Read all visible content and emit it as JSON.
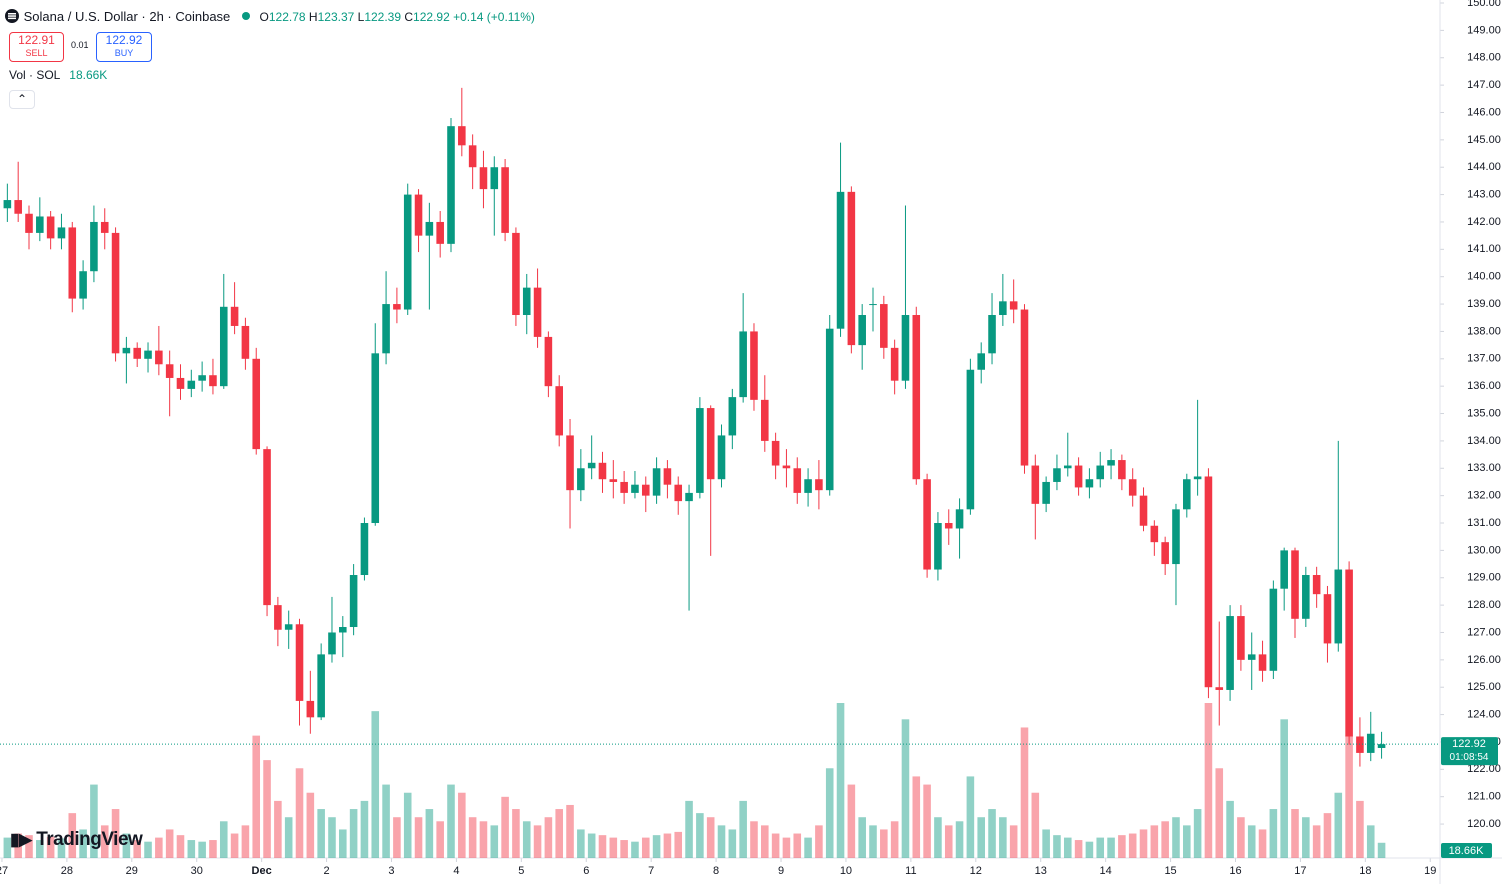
{
  "header": {
    "symbol": "Solana / U.S. Dollar · 2h · Coinbase",
    "open_prefix": "O",
    "high_prefix": "H",
    "low_prefix": "L",
    "close_prefix": "C",
    "change": "+0.14 (+0.11%)",
    "sell_price": "122.91",
    "sell": "SELL",
    "spread": "0.01",
    "buy_price": "122.92",
    "buy": "BUY",
    "volume_title": "Vol · SOL",
    "logo": "TradingView"
  },
  "chart_data": {
    "type": "candlestick",
    "up_color": "#089981",
    "down_color": "#f23645",
    "countdown": "01:08:54",
    "volume_value_label": "18.66K",
    "ylim": [
      118.76,
      150.11
    ],
    "xlim": [
      -0.18,
      132.9
    ],
    "yticks": [
      {
        "value": 120,
        "label": "120.00"
      },
      {
        "value": 121,
        "label": "121.00"
      },
      {
        "value": 122,
        "label": "122.00"
      },
      {
        "value": 123,
        "label": "123.00"
      },
      {
        "value": 124,
        "label": "124.00"
      },
      {
        "value": 125,
        "label": "125.00"
      },
      {
        "value": 126,
        "label": "126.00"
      },
      {
        "value": 127,
        "label": "127.00"
      },
      {
        "value": 128,
        "label": "128.00"
      },
      {
        "value": 129,
        "label": "129.00"
      },
      {
        "value": 130,
        "label": "130.00"
      },
      {
        "value": 131,
        "label": "131.00"
      },
      {
        "value": 132,
        "label": "132.00"
      },
      {
        "value": 133,
        "label": "133.00"
      },
      {
        "value": 134,
        "label": "134.00"
      },
      {
        "value": 135,
        "label": "135.00"
      },
      {
        "value": 136,
        "label": "136.00"
      },
      {
        "value": 137,
        "label": "137.00"
      },
      {
        "value": 138,
        "label": "138.00"
      },
      {
        "value": 139,
        "label": "139.00"
      },
      {
        "value": 140,
        "label": "140.00"
      },
      {
        "value": 141,
        "label": "141.00"
      },
      {
        "value": 142,
        "label": "142.00"
      },
      {
        "value": 143,
        "label": "143.00"
      },
      {
        "value": 144,
        "label": "144.00"
      },
      {
        "value": 145,
        "label": "145.00"
      },
      {
        "value": 146,
        "label": "146.00"
      },
      {
        "value": 147,
        "label": "147.00"
      },
      {
        "value": 148,
        "label": "148.00"
      },
      {
        "value": 149,
        "label": "149.00"
      },
      {
        "value": 150,
        "label": "150.00"
      }
    ],
    "xticks": [
      {
        "value": 0,
        "label": "27"
      },
      {
        "value": 6,
        "label": "28"
      },
      {
        "value": 12,
        "label": "29"
      },
      {
        "value": 18,
        "label": "30"
      },
      {
        "value": 24,
        "label": "Dec"
      },
      {
        "value": 30,
        "label": "2"
      },
      {
        "value": 36,
        "label": "3"
      },
      {
        "value": 42,
        "label": "4"
      },
      {
        "value": 48,
        "label": "5"
      },
      {
        "value": 54,
        "label": "6"
      },
      {
        "value": 60,
        "label": "7"
      },
      {
        "value": 66,
        "label": "8"
      },
      {
        "value": 72,
        "label": "9"
      },
      {
        "value": 78,
        "label": "10"
      },
      {
        "value": 84,
        "label": "11"
      },
      {
        "value": 90,
        "label": "12"
      },
      {
        "value": 96,
        "label": "13"
      },
      {
        "value": 102,
        "label": "14"
      },
      {
        "value": 108,
        "label": "15"
      },
      {
        "value": 114,
        "label": "16"
      },
      {
        "value": 120,
        "label": "17"
      },
      {
        "value": 126,
        "label": "18"
      },
      {
        "value": 132,
        "label": "19"
      }
    ],
    "candles": [
      [
        142.5,
        143.4,
        142.0,
        142.8,
        25000
      ],
      [
        142.8,
        144.2,
        142.0,
        142.3,
        30000
      ],
      [
        142.3,
        142.6,
        141.0,
        141.6,
        28000
      ],
      [
        141.6,
        142.9,
        141.3,
        142.2,
        22000
      ],
      [
        142.2,
        142.4,
        141.0,
        141.4,
        26000
      ],
      [
        141.4,
        142.3,
        141.0,
        141.8,
        24000
      ],
      [
        141.8,
        142.0,
        138.7,
        139.2,
        55000
      ],
      [
        139.2,
        140.6,
        138.8,
        140.2,
        35000
      ],
      [
        140.2,
        142.6,
        139.8,
        142.0,
        90000
      ],
      [
        142.0,
        142.5,
        141.0,
        141.6,
        40000
      ],
      [
        141.6,
        141.8,
        136.9,
        137.2,
        60000
      ],
      [
        137.2,
        137.8,
        136.1,
        137.4,
        30000
      ],
      [
        137.4,
        137.6,
        136.7,
        137.0,
        22000
      ],
      [
        137.0,
        137.6,
        136.5,
        137.3,
        20000
      ],
      [
        137.3,
        138.2,
        136.4,
        136.8,
        25000
      ],
      [
        136.8,
        137.3,
        134.9,
        136.3,
        35000
      ],
      [
        136.3,
        136.8,
        135.5,
        135.9,
        28000
      ],
      [
        135.9,
        136.6,
        135.6,
        136.2,
        22000
      ],
      [
        136.2,
        136.9,
        135.8,
        136.4,
        20000
      ],
      [
        136.4,
        137.0,
        135.7,
        136.0,
        22000
      ],
      [
        136.0,
        140.1,
        135.9,
        138.9,
        45000
      ],
      [
        138.9,
        139.8,
        137.9,
        138.2,
        30000
      ],
      [
        138.2,
        138.5,
        136.6,
        137.0,
        40000
      ],
      [
        137.0,
        137.4,
        133.5,
        133.7,
        150000
      ],
      [
        133.7,
        133.8,
        127.6,
        128.0,
        120000
      ],
      [
        128.0,
        128.3,
        126.5,
        127.1,
        70000
      ],
      [
        127.1,
        127.8,
        126.4,
        127.3,
        50000
      ],
      [
        127.3,
        127.5,
        123.6,
        124.5,
        110000
      ],
      [
        124.5,
        125.6,
        123.3,
        123.9,
        80000
      ],
      [
        123.9,
        126.6,
        123.8,
        126.2,
        60000
      ],
      [
        126.2,
        128.3,
        125.9,
        127.0,
        50000
      ],
      [
        127.0,
        127.6,
        126.1,
        127.2,
        35000
      ],
      [
        127.2,
        129.5,
        126.9,
        129.1,
        60000
      ],
      [
        129.1,
        131.2,
        128.9,
        131.0,
        70000
      ],
      [
        131.0,
        138.3,
        130.9,
        137.2,
        180000
      ],
      [
        137.2,
        140.2,
        136.8,
        139.0,
        90000
      ],
      [
        139.0,
        139.6,
        138.3,
        138.8,
        50000
      ],
      [
        138.8,
        143.4,
        138.6,
        143.0,
        80000
      ],
      [
        143.0,
        143.2,
        140.9,
        141.5,
        50000
      ],
      [
        141.5,
        142.7,
        138.8,
        142.0,
        60000
      ],
      [
        142.0,
        142.4,
        140.7,
        141.2,
        45000
      ],
      [
        141.2,
        145.8,
        140.9,
        145.5,
        90000
      ],
      [
        145.5,
        146.9,
        144.4,
        144.8,
        80000
      ],
      [
        144.8,
        145.2,
        143.2,
        144.0,
        50000
      ],
      [
        144.0,
        144.6,
        142.5,
        143.2,
        45000
      ],
      [
        143.2,
        144.4,
        141.5,
        144.0,
        40000
      ],
      [
        144.0,
        144.3,
        141.3,
        141.6,
        75000
      ],
      [
        141.6,
        141.8,
        138.2,
        138.6,
        60000
      ],
      [
        138.6,
        140.1,
        137.9,
        139.6,
        45000
      ],
      [
        139.6,
        140.3,
        137.4,
        137.8,
        40000
      ],
      [
        137.8,
        138.0,
        135.6,
        136.0,
        50000
      ],
      [
        136.0,
        136.4,
        133.8,
        134.2,
        60000
      ],
      [
        134.2,
        134.8,
        130.8,
        132.2,
        65000
      ],
      [
        132.2,
        133.7,
        131.8,
        133.0,
        35000
      ],
      [
        133.0,
        134.2,
        132.6,
        133.2,
        30000
      ],
      [
        133.2,
        133.6,
        132.1,
        132.6,
        28000
      ],
      [
        132.6,
        133.3,
        131.9,
        132.5,
        25000
      ],
      [
        132.5,
        132.9,
        131.7,
        132.1,
        22000
      ],
      [
        132.1,
        132.9,
        131.9,
        132.4,
        20000
      ],
      [
        132.4,
        132.7,
        131.4,
        132.0,
        25000
      ],
      [
        132.0,
        133.4,
        131.7,
        133.0,
        28000
      ],
      [
        133.0,
        133.3,
        131.9,
        132.4,
        30000
      ],
      [
        132.4,
        132.7,
        131.3,
        131.8,
        32000
      ],
      [
        131.8,
        132.4,
        127.8,
        132.1,
        70000
      ],
      [
        132.1,
        135.6,
        131.9,
        135.2,
        55000
      ],
      [
        135.2,
        135.3,
        129.8,
        132.6,
        50000
      ],
      [
        132.6,
        134.6,
        132.3,
        134.2,
        40000
      ],
      [
        134.2,
        135.9,
        133.7,
        135.6,
        35000
      ],
      [
        135.6,
        139.4,
        135.4,
        138.0,
        70000
      ],
      [
        138.0,
        138.3,
        135.1,
        135.5,
        45000
      ],
      [
        135.5,
        136.4,
        133.6,
        134.0,
        40000
      ],
      [
        134.0,
        134.3,
        132.6,
        133.1,
        30000
      ],
      [
        133.1,
        133.7,
        132.3,
        133.0,
        25000
      ],
      [
        133.0,
        133.4,
        131.7,
        132.1,
        30000
      ],
      [
        132.1,
        133.0,
        131.6,
        132.6,
        25000
      ],
      [
        132.6,
        133.3,
        131.5,
        132.2,
        40000
      ],
      [
        132.2,
        138.6,
        132.0,
        138.1,
        110000
      ],
      [
        138.1,
        144.9,
        137.8,
        143.1,
        190000
      ],
      [
        143.1,
        143.3,
        137.2,
        137.5,
        90000
      ],
      [
        137.5,
        139.0,
        136.6,
        138.6,
        50000
      ],
      [
        139.0,
        139.6,
        138.0,
        139.0,
        40000
      ],
      [
        139.0,
        139.3,
        137.0,
        137.4,
        35000
      ],
      [
        137.4,
        137.7,
        135.7,
        136.2,
        45000
      ],
      [
        136.2,
        142.6,
        135.9,
        138.6,
        170000
      ],
      [
        138.6,
        138.9,
        132.4,
        132.6,
        100000
      ],
      [
        132.6,
        132.8,
        129.0,
        129.3,
        90000
      ],
      [
        129.3,
        131.4,
        128.9,
        131.0,
        50000
      ],
      [
        131.0,
        131.5,
        130.2,
        130.8,
        40000
      ],
      [
        130.8,
        131.9,
        129.7,
        131.5,
        45000
      ],
      [
        131.5,
        137.0,
        131.3,
        136.6,
        100000
      ],
      [
        136.6,
        137.6,
        136.1,
        137.2,
        50000
      ],
      [
        137.2,
        139.4,
        136.8,
        138.6,
        60000
      ],
      [
        138.6,
        140.1,
        138.2,
        139.1,
        50000
      ],
      [
        139.1,
        139.9,
        138.3,
        138.8,
        40000
      ],
      [
        138.8,
        139.0,
        132.8,
        133.1,
        160000
      ],
      [
        133.1,
        133.5,
        130.4,
        131.7,
        80000
      ],
      [
        131.7,
        132.7,
        131.4,
        132.5,
        35000
      ],
      [
        132.5,
        133.5,
        132.2,
        133.0,
        28000
      ],
      [
        133.0,
        134.3,
        132.7,
        133.1,
        25000
      ],
      [
        133.1,
        133.4,
        132.0,
        132.3,
        22000
      ],
      [
        132.3,
        133.0,
        131.9,
        132.6,
        20000
      ],
      [
        132.6,
        133.6,
        132.3,
        133.1,
        25000
      ],
      [
        133.1,
        133.7,
        132.6,
        133.3,
        25000
      ],
      [
        133.3,
        133.5,
        132.2,
        132.6,
        28000
      ],
      [
        132.6,
        133.0,
        131.6,
        132.0,
        30000
      ],
      [
        132.0,
        132.3,
        130.7,
        130.9,
        35000
      ],
      [
        130.9,
        131.1,
        129.8,
        130.3,
        40000
      ],
      [
        130.3,
        130.5,
        129.1,
        129.5,
        45000
      ],
      [
        129.5,
        131.7,
        128.0,
        131.5,
        50000
      ],
      [
        131.5,
        132.8,
        131.2,
        132.6,
        40000
      ],
      [
        132.6,
        135.5,
        132.0,
        132.7,
        60000
      ],
      [
        132.7,
        133.0,
        124.6,
        125.0,
        190000
      ],
      [
        125.0,
        127.4,
        123.6,
        124.9,
        110000
      ],
      [
        124.9,
        128.0,
        124.5,
        127.6,
        70000
      ],
      [
        127.6,
        128.0,
        125.6,
        126.0,
        50000
      ],
      [
        126.0,
        127.0,
        124.9,
        126.2,
        40000
      ],
      [
        126.2,
        126.7,
        125.2,
        125.6,
        35000
      ],
      [
        125.6,
        128.9,
        125.3,
        128.6,
        60000
      ],
      [
        128.6,
        130.1,
        127.8,
        130.0,
        170000
      ],
      [
        130.0,
        130.1,
        126.8,
        127.5,
        60000
      ],
      [
        127.5,
        129.4,
        127.2,
        129.1,
        50000
      ],
      [
        129.1,
        129.4,
        127.9,
        128.4,
        40000
      ],
      [
        128.4,
        128.7,
        125.9,
        126.6,
        55000
      ],
      [
        126.6,
        134.0,
        126.3,
        129.3,
        80000
      ],
      [
        129.3,
        129.6,
        122.9,
        123.2,
        150000
      ],
      [
        123.2,
        123.9,
        122.1,
        122.6,
        70000
      ],
      [
        122.6,
        124.1,
        122.3,
        123.3,
        40000
      ],
      [
        122.78,
        123.37,
        122.39,
        122.92,
        18660
      ]
    ]
  }
}
